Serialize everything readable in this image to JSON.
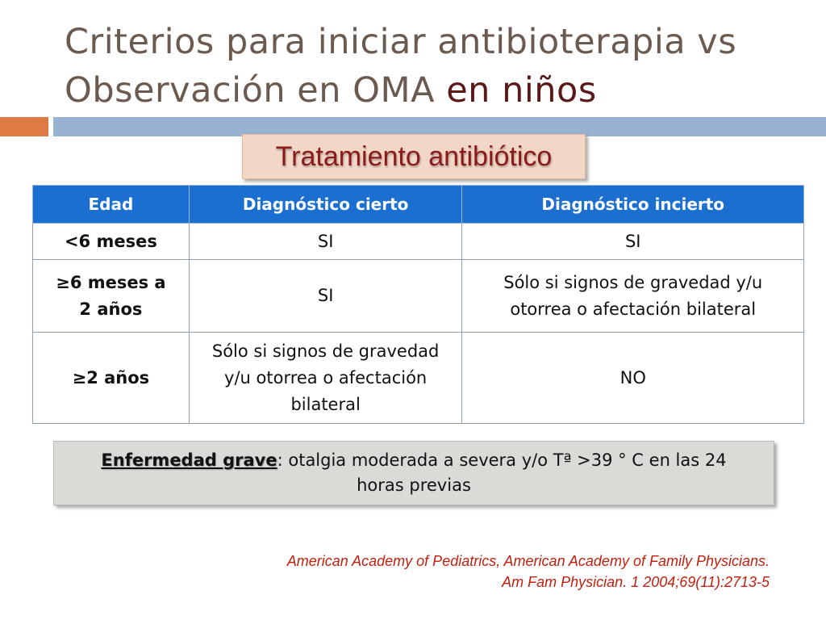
{
  "title": {
    "line1": "Criterios para iniciar antibioterapia  vs",
    "line2_start": "Observación en OMA ",
    "line2_accent": "en niños"
  },
  "subtitle": "Tratamiento antibiótico",
  "table": {
    "headers": [
      "Edad",
      "Diagnóstico cierto",
      "Diagnóstico incierto"
    ],
    "rows": [
      {
        "age": "<6 meses",
        "certain": "SI",
        "uncertain": "SI"
      },
      {
        "age_line1": "≥6 meses a",
        "age_line2": "2 años",
        "certain": "SI",
        "uncertain_line1": "Sólo si signos de gravedad y/u",
        "uncertain_line2": "otorrea o afectación bilateral"
      },
      {
        "age": "≥2  años",
        "certain_line1": "Sólo si signos de gravedad",
        "certain_line2": "y/u otorrea o afectación",
        "certain_line3": "bilateral",
        "uncertain": "NO"
      }
    ]
  },
  "note": {
    "term": "Enfermedad grave",
    "text_line1": ": otalgia moderada a severa  y/o Tª >39 ° C en las 24",
    "text_line2": "horas previas"
  },
  "reference": {
    "line1": "American Academy of Pediatrics, American Academy of Family Physicians.",
    "line2": "Am Fam Physician. 1 2004;69(11):2713-5"
  },
  "colors": {
    "title": "#6b5a4f",
    "title_accent": "#5b1a1a",
    "orange_bar": "#e07a45",
    "blue_bar": "#97b3d0",
    "table_header": "#1a6fd1",
    "subtitle_text": "#8b1a1a",
    "reference_text": "#c0200f"
  }
}
